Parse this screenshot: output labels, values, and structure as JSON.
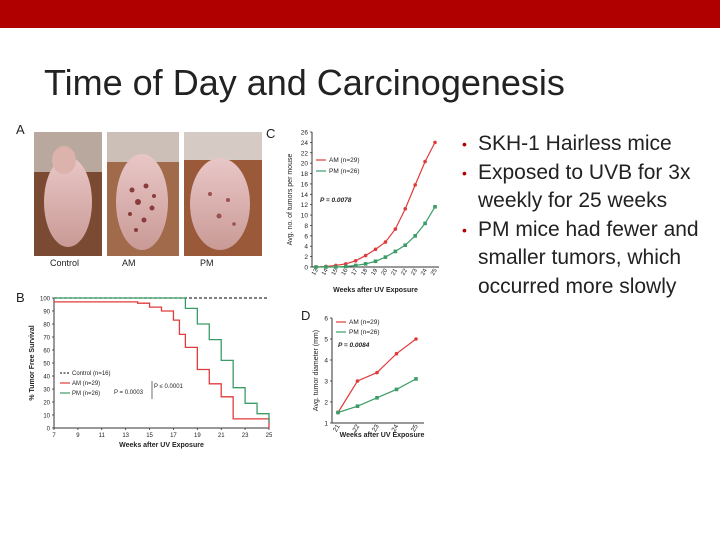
{
  "slide": {
    "title": "Time of Day and Carcinogenesis",
    "bullets": [
      {
        "text": "SKH-1 Hairless mice"
      },
      {
        "text": "Exposed to UVB for 3x weekly for 25 weeks"
      },
      {
        "text": "PM mice had fewer and smaller tumors, which occurred more slowly"
      }
    ],
    "colors": {
      "topbar": "#b00000",
      "am": "#e03b3b",
      "pm": "#3b9c67",
      "control": "#333333"
    }
  },
  "figure": {
    "panel_labels": {
      "a": "A",
      "b": "B",
      "c": "C",
      "d": "D"
    },
    "photo_labels": {
      "control": "Control",
      "am": "AM",
      "pm": "PM"
    }
  },
  "chart_data": [
    {
      "panel": "B",
      "type": "line",
      "step": true,
      "xlabel": "Weeks after UV Exposure",
      "ylabel": "% Tumor Free Survival",
      "xticks": [
        7,
        9,
        11,
        13,
        15,
        17,
        19,
        21,
        23,
        25
      ],
      "yticks": [
        0,
        10,
        20,
        30,
        40,
        50,
        60,
        70,
        80,
        90,
        100
      ],
      "xlim": [
        7,
        25
      ],
      "ylim": [
        0,
        100
      ],
      "legend": [
        "Control (n=16)",
        "AM (n=29)",
        "PM (n=26)"
      ],
      "annotations": [
        "P = 0.0003",
        "P ≤ 0.0001"
      ],
      "series": [
        {
          "name": "Control (n=16)",
          "dashed": true,
          "x": [
            7,
            25
          ],
          "y": [
            100,
            100
          ]
        },
        {
          "name": "AM (n=29)",
          "x": [
            7,
            13,
            14,
            15,
            16,
            17,
            17.5,
            18,
            19,
            20,
            21,
            22,
            25
          ],
          "y": [
            97,
            97,
            96,
            93,
            90,
            83,
            72,
            62,
            45,
            34,
            24,
            7,
            0
          ]
        },
        {
          "name": "PM (n=26)",
          "x": [
            7,
            17,
            18,
            19,
            20,
            21,
            22,
            23,
            24,
            25
          ],
          "y": [
            100,
            100,
            92,
            80,
            68,
            52,
            31,
            19,
            11,
            4
          ]
        }
      ]
    },
    {
      "panel": "C",
      "type": "line",
      "xlabel": "Weeks after UV Exposure",
      "ylabel": "Avg. no. of tumors per mouse",
      "x": [
        13,
        14,
        15,
        16,
        17,
        18,
        19,
        20,
        21,
        22,
        23,
        24,
        25
      ],
      "yticks": [
        0,
        2,
        4,
        6,
        8,
        10,
        12,
        14,
        16,
        18,
        20,
        22,
        24,
        26
      ],
      "ylim": [
        0,
        26
      ],
      "annotation": "P = 0.0078",
      "series": [
        {
          "name": "AM (n=29)",
          "values": [
            0,
            0.1,
            0.3,
            0.6,
            1.2,
            2.2,
            3.4,
            4.8,
            7.3,
            11.2,
            15.8,
            20.3,
            24.0
          ]
        },
        {
          "name": "PM (n=26)",
          "values": [
            0,
            0,
            0,
            0.1,
            0.3,
            0.6,
            1.1,
            1.9,
            3.0,
            4.2,
            6.0,
            8.4,
            11.6
          ]
        }
      ]
    },
    {
      "panel": "D",
      "type": "line",
      "xlabel": "Weeks after UV Exposure",
      "ylabel": "Avg. tumor diameter (mm)",
      "x": [
        21,
        22,
        23,
        24,
        25
      ],
      "yticks": [
        1,
        2,
        3,
        4,
        5,
        6
      ],
      "ylim": [
        1,
        6
      ],
      "annotation": "P = 0.0084",
      "series": [
        {
          "name": "AM (n=29)",
          "values": [
            1.5,
            3.0,
            3.4,
            4.3,
            5.0
          ]
        },
        {
          "name": "PM (n=26)",
          "values": [
            1.5,
            1.8,
            2.2,
            2.6,
            3.1
          ]
        }
      ]
    }
  ]
}
